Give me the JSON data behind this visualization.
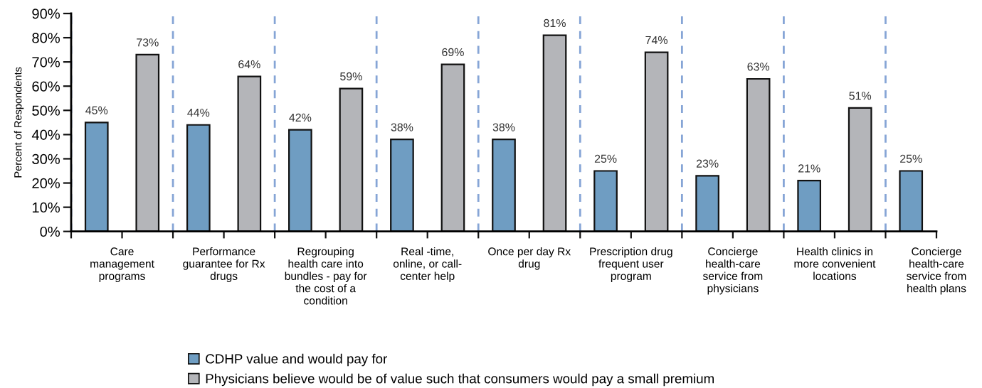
{
  "chart_data": {
    "type": "bar",
    "ylabel": "Percent of Respondents",
    "categories": [
      "Care\nmanagement\nprograms",
      "Performance\nguarantee for Rx\ndrugs",
      "Regrouping\nhealth care into\nbundles - pay for\nthe cost of a\ncondition",
      "Real -time,\nonline, or call-\ncenter help",
      "Once per day Rx\ndrug",
      "Prescription drug\nfrequent user\nprogram",
      "Concierge\nhealth-care\nservice from\nphysicians",
      "Health clinics in\nmore convenient\nlocations",
      "Concierge\nhealth-care\nservice from\nhealth plans"
    ],
    "series": [
      {
        "name": "CDHP value and would pay for",
        "color": "#6f9dc2",
        "values": [
          45,
          44,
          42,
          38,
          38,
          25,
          23,
          21,
          25
        ],
        "value_labels": [
          "45%",
          "44%",
          "42%",
          "38%",
          "38%",
          "25%",
          "23%",
          "21%",
          "25%"
        ]
      },
      {
        "name": "Physicians believe would be of value such that consumers would pay a small premium",
        "color": "#b4b5b9",
        "values": [
          73,
          64,
          59,
          69,
          81,
          74,
          63,
          51,
          null
        ],
        "value_labels": [
          "73%",
          "64%",
          "59%",
          "69%",
          "81%",
          "74%",
          "63%",
          "51%",
          null
        ]
      }
    ],
    "ylim": [
      0,
      90
    ],
    "yticks": [
      {
        "value": 0,
        "label": "0%"
      },
      {
        "value": 10,
        "label": "10%"
      },
      {
        "value": 20,
        "label": "20%"
      },
      {
        "value": 30,
        "label": "30%"
      },
      {
        "value": 40,
        "label": "40%"
      },
      {
        "value": 50,
        "label": "50%"
      },
      {
        "value": 60,
        "label": "60%"
      },
      {
        "value": 70,
        "label": "70%"
      },
      {
        "value": 80,
        "label": "80%"
      },
      {
        "value": 90,
        "label": "90%"
      }
    ],
    "grid": "x",
    "legend": "bottom"
  }
}
